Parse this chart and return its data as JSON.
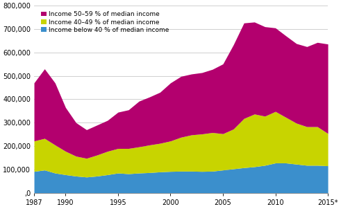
{
  "years": [
    1987,
    1988,
    1989,
    1990,
    1991,
    1992,
    1993,
    1994,
    1995,
    1996,
    1997,
    1998,
    1999,
    2000,
    2001,
    2002,
    2003,
    2004,
    2005,
    2006,
    2007,
    2008,
    2009,
    2010,
    2011,
    2012,
    2013,
    2014,
    2015
  ],
  "below40": [
    92000,
    98000,
    85000,
    78000,
    72000,
    68000,
    72000,
    78000,
    85000,
    82000,
    85000,
    87000,
    90000,
    92000,
    93000,
    93000,
    92000,
    93000,
    98000,
    103000,
    108000,
    112000,
    118000,
    128000,
    128000,
    123000,
    118000,
    118000,
    116000
  ],
  "income4049": [
    130000,
    135000,
    120000,
    100000,
    85000,
    80000,
    90000,
    100000,
    105000,
    108000,
    112000,
    118000,
    122000,
    130000,
    145000,
    155000,
    160000,
    165000,
    155000,
    170000,
    210000,
    225000,
    210000,
    220000,
    195000,
    175000,
    165000,
    165000,
    138000
  ],
  "income5059": [
    248000,
    297000,
    265000,
    187000,
    143000,
    122000,
    128000,
    132000,
    155000,
    165000,
    195000,
    205000,
    218000,
    248000,
    260000,
    260000,
    262000,
    270000,
    298000,
    360000,
    408000,
    393000,
    382000,
    357000,
    348000,
    340000,
    342000,
    360000,
    382000
  ],
  "color_below40": "#3b8fcc",
  "color_4049": "#c8d400",
  "color_5059": "#b3006e",
  "legend_labels": [
    "Income 50–59 % of median income",
    "Income 40–49 % of median income",
    "Income below 40 % of median income"
  ],
  "yticks": [
    0,
    100000,
    200000,
    300000,
    400000,
    500000,
    600000,
    700000,
    800000
  ],
  "ytick_labels": [
    ",0",
    "100,000",
    "200,000",
    "300,000",
    "400,000",
    "500,000",
    "600,000",
    "700,000",
    "800,000"
  ],
  "xtick_labels": [
    "1987",
    "1990",
    "1995",
    "2000",
    "2005",
    "2010",
    "2015*"
  ],
  "xtick_positions": [
    1987,
    1990,
    1995,
    2000,
    2005,
    2010,
    2015
  ],
  "ylim": [
    0,
    800000
  ],
  "xlim": [
    1987,
    2015
  ],
  "grid_color": "#c8c8c8",
  "bg_color": "#ffffff"
}
